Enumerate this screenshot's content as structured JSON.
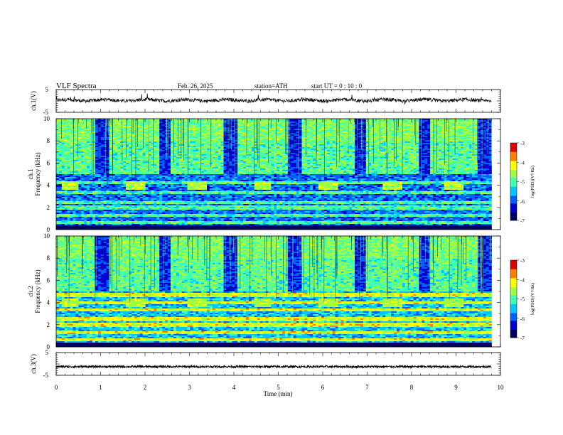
{
  "header": {
    "title": "VLF  Spectra",
    "date": "Feb. 26, 2025",
    "station": "station=ATH",
    "start": "start  UT  =    0  : 10 : 0"
  },
  "chart_data": [
    {
      "type": "line",
      "name": "ch1-waveform",
      "ylabel": "ch.1(V)",
      "ylim": [
        -5,
        5
      ],
      "yticks": [
        "5",
        "-5"
      ],
      "xlim": [
        0,
        10
      ],
      "baseline": 0.3
    },
    {
      "type": "heatmap",
      "name": "ch1-spectrogram",
      "ylabel": "ch.1\nFrequency (kHz)",
      "ylabel_lines": [
        "ch.1",
        "Frequency (kHz)"
      ],
      "ylim": [
        0,
        10
      ],
      "yticks": [
        "0",
        "2",
        "4",
        "6",
        "8",
        "10"
      ],
      "xlim": [
        0,
        10
      ],
      "colorbar": {
        "label": "log(PSD)(V²/Hz)",
        "range": [
          -7,
          -3
        ],
        "ticks": [
          "-3",
          "-4",
          "-5",
          "-6",
          "-7"
        ]
      },
      "bursts_min": [
        [
          0.1,
          0.5
        ],
        [
          1.55,
          2.0
        ],
        [
          2.95,
          3.4
        ],
        [
          4.45,
          4.85
        ],
        [
          5.9,
          6.35
        ],
        [
          7.35,
          7.8
        ],
        [
          8.75,
          9.15
        ]
      ],
      "burst_band_khz": [
        3.6,
        4.4
      ],
      "bands_khz": [
        0.6,
        1.3,
        2.0,
        2.4,
        3.3,
        4.2
      ]
    },
    {
      "type": "heatmap",
      "name": "ch2-spectrogram",
      "ylabel": "ch.2\nFrequency (kHz)",
      "ylabel_lines": [
        "ch.2",
        "Frequency (kHz)"
      ],
      "ylim": [
        0,
        10
      ],
      "yticks": [
        "0",
        "2",
        "4",
        "6",
        "8",
        "10"
      ],
      "xlim": [
        0,
        10
      ],
      "colorbar": {
        "label": "log(PSD)(V²/Hz)",
        "range": [
          -7,
          -3
        ],
        "ticks": [
          "-3",
          "-4",
          "-5",
          "-6",
          "-7"
        ]
      },
      "bursts_min": [
        [
          0.1,
          0.5
        ],
        [
          1.55,
          2.0
        ],
        [
          2.95,
          3.4
        ],
        [
          4.45,
          4.85
        ],
        [
          5.9,
          6.35
        ],
        [
          7.35,
          7.8
        ],
        [
          8.75,
          9.15
        ]
      ],
      "burst_band_khz": [
        3.6,
        4.4
      ],
      "bands_khz": [
        0.6,
        1.3,
        2.0,
        2.5,
        3.3,
        4.0,
        4.7
      ]
    },
    {
      "type": "line",
      "name": "ch3-waveform",
      "ylabel": "ch.3(V)",
      "ylim": [
        -5,
        5
      ],
      "yticks": [
        "5",
        "-5"
      ],
      "xlim": [
        0,
        10
      ],
      "baseline": -1.2
    }
  ],
  "xaxis": {
    "label": "Time  (min)",
    "ticks": [
      "0",
      "1",
      "2",
      "3",
      "4",
      "5",
      "6",
      "7",
      "8",
      "9",
      "10"
    ],
    "xlim": [
      0,
      10
    ],
    "data_end": 9.8
  },
  "colors": {
    "colormap": [
      "#000060",
      "#0000d0",
      "#0060ff",
      "#00c8ff",
      "#40ffb0",
      "#a0ff40",
      "#ffff00",
      "#ff8000",
      "#e00000",
      "#ffffff"
    ]
  }
}
